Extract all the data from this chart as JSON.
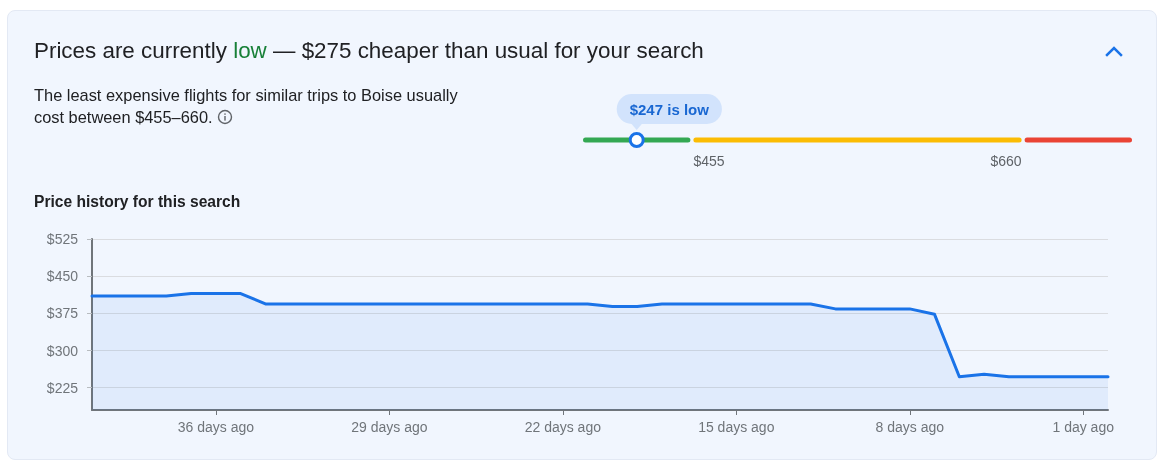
{
  "chart_data": [
    {
      "type": "other",
      "title": "Prices are currently low — $275 cheaper than usual for your search",
      "subtitle": "The least expensive flights for similar trips to Boise usually cost between $455–660.",
      "annotations": [
        "$247 is low",
        "$455",
        "$660"
      ]
    },
    {
      "type": "area",
      "title": "Price history for this search",
      "x": [
        41,
        40,
        39,
        38,
        37,
        36,
        35,
        34,
        33,
        32,
        31,
        30,
        29,
        28,
        27,
        26,
        25,
        24,
        23,
        22,
        21,
        20,
        19,
        18,
        17,
        16,
        15,
        14,
        13,
        12,
        11,
        10,
        9,
        8,
        7,
        6,
        5,
        4,
        3,
        2,
        1,
        0
      ],
      "values": [
        410,
        410,
        410,
        410,
        415,
        415,
        415,
        394,
        394,
        394,
        394,
        394,
        394,
        394,
        394,
        394,
        394,
        394,
        394,
        394,
        394,
        389,
        389,
        394,
        394,
        394,
        394,
        394,
        394,
        394,
        384,
        384,
        384,
        384,
        373,
        247,
        252,
        247,
        247,
        247,
        247,
        247
      ],
      "color": "#1a73e8",
      "xlim": [
        41,
        0
      ],
      "ylim": [
        180,
        525
      ],
      "xticks": [
        {
          "value": 36,
          "label": "36 days ago"
        },
        {
          "value": 29,
          "label": "29 days ago"
        },
        {
          "value": 22,
          "label": "22 days ago"
        },
        {
          "value": 15,
          "label": "15 days ago"
        },
        {
          "value": 8,
          "label": "8 days ago"
        },
        {
          "value": 1,
          "label": "1 day ago"
        }
      ],
      "yticks": [
        {
          "value": 225,
          "label": "$225"
        },
        {
          "value": 300,
          "label": "$300"
        },
        {
          "value": 375,
          "label": "$375"
        },
        {
          "value": 450,
          "label": "$450"
        },
        {
          "value": 525,
          "label": "$525"
        }
      ],
      "grid": "y"
    }
  ]
}
